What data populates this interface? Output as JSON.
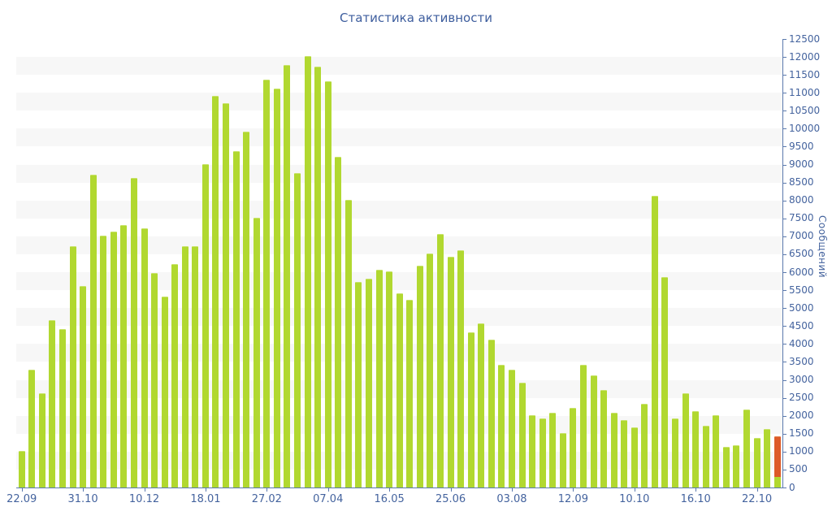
{
  "page": {
    "title": "Статистика активности"
  },
  "chart_data": {
    "type": "bar",
    "title": "Статистика активности",
    "ylabel": "Сообщений",
    "xlabel": "",
    "ylim": [
      0,
      12500
    ],
    "ytick_step": 500,
    "grid": "horizontal-stripes",
    "legend": "none",
    "x_ticks": {
      "labels": [
        "22.09",
        "31.10",
        "10.12",
        "18.01",
        "27.02",
        "07.04",
        "16.05",
        "25.06",
        "03.08",
        "12.09",
        "10.10",
        "16.10",
        "22.10"
      ],
      "bar_indices": [
        0,
        6,
        12,
        18,
        24,
        30,
        36,
        42,
        48,
        54,
        60,
        66,
        72
      ]
    },
    "values": [
      1000,
      3270,
      2600,
      4650,
      4400,
      6700,
      5600,
      8700,
      7000,
      7100,
      7300,
      8600,
      7200,
      5950,
      5300,
      6200,
      6700,
      6700,
      9000,
      10900,
      10700,
      9350,
      9900,
      7500,
      11350,
      11100,
      11750,
      8750,
      12000,
      11700,
      11300,
      9200,
      8000,
      5700,
      5800,
      6050,
      6000,
      5400,
      5200,
      6150,
      6500,
      7050,
      6400,
      6600,
      4300,
      4550,
      4100,
      3400,
      3250,
      2900,
      2000,
      1900,
      2050,
      1500,
      2200,
      3400,
      3100,
      2700,
      2050,
      1850,
      1650,
      2300,
      8100,
      5850,
      1900,
      2600,
      2100,
      1700,
      2000,
      1100,
      1150,
      2150,
      1350,
      1600,
      1400
    ],
    "highlight_last_bar": {
      "index": 74,
      "total": 1400,
      "green_base": 300
    }
  },
  "colors": {
    "bar_green": "#b1d830",
    "bar_orange": "#dd5b28",
    "axis_line": "#5b79ad",
    "tick_text": "#44639e",
    "title_text": "#3e5e9e",
    "stripe": "#f7f7f7"
  }
}
